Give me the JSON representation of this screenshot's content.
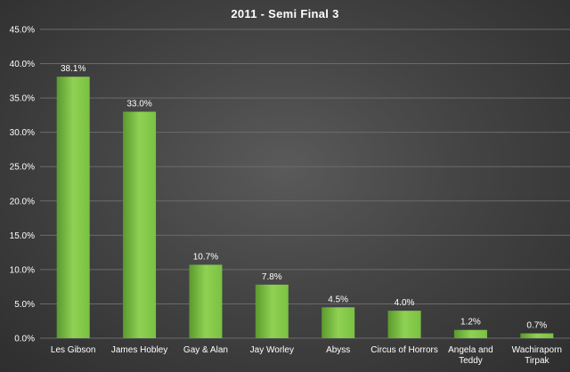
{
  "chart_data": {
    "type": "bar",
    "title": "2011 - Semi Final 3",
    "xlabel": "",
    "ylabel": "",
    "categories": [
      [
        "Les Gibson"
      ],
      [
        "James Hobley"
      ],
      [
        "Gay & Alan"
      ],
      [
        "Jay Worley"
      ],
      [
        "Abyss"
      ],
      [
        "Circus of Horrors"
      ],
      [
        "Angela and",
        "Teddy"
      ],
      [
        "Wachiraporn",
        "Tirpak"
      ]
    ],
    "values": [
      38.1,
      33.0,
      10.7,
      7.8,
      4.5,
      4.0,
      1.2,
      0.7
    ],
    "value_labels": [
      "38.1%",
      "33.0%",
      "10.7%",
      "7.8%",
      "4.5%",
      "4.0%",
      "1.2%",
      "0.7%"
    ],
    "ylim": [
      0,
      45
    ],
    "yticks": [
      0,
      5,
      10,
      15,
      20,
      25,
      30,
      35,
      40,
      45
    ],
    "ytick_labels": [
      "0.0%",
      "5.0%",
      "10.0%",
      "15.0%",
      "20.0%",
      "25.0%",
      "30.0%",
      "35.0%",
      "40.0%",
      "45.0%"
    ],
    "grid": true,
    "legend": "none",
    "colors": {
      "bar": "#7ac142",
      "bar_light": "#8fd153",
      "bar_dark": "#5a9a2e",
      "grid": "#6b6b6b",
      "text": "#ffffff"
    }
  }
}
